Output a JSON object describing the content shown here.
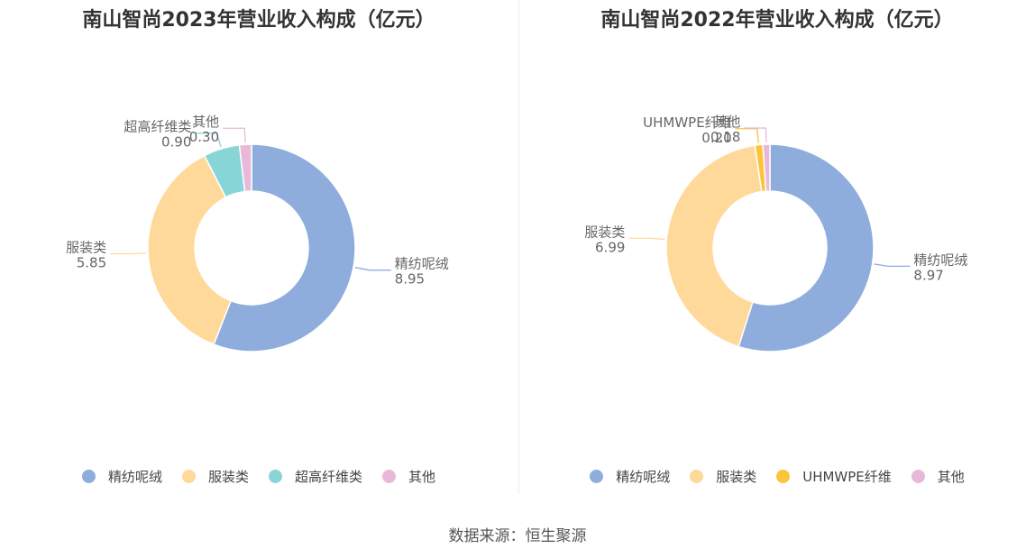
{
  "chart_data": [
    {
      "type": "pie",
      "title": "南山智尚2023年营业收入构成（亿元）",
      "categories": [
        "精纺呢绒",
        "服装类",
        "超高纤维类",
        "其他"
      ],
      "values": [
        8.95,
        5.85,
        0.9,
        0.3
      ],
      "value_labels": [
        "8.95",
        "5.85",
        "0.90",
        "0.30"
      ],
      "colors": [
        "#8eaddc",
        "#ffd99a",
        "#88d5d8",
        "#e8b8d9"
      ],
      "legend_position": "bottom"
    },
    {
      "type": "pie",
      "title": "南山智尚2022年营业收入构成（亿元）",
      "categories": [
        "精纺呢绒",
        "服装类",
        "UHMWPE纤维",
        "其他"
      ],
      "values": [
        8.97,
        6.99,
        0.2,
        0.18
      ],
      "value_labels": [
        "8.97",
        "6.99",
        "0.20",
        "0.18"
      ],
      "colors": [
        "#8eaddc",
        "#ffd99a",
        "#fbc43a",
        "#e8b8d9"
      ],
      "legend_position": "bottom"
    }
  ],
  "footer": {
    "source_label": "数据来源：",
    "source_value": "恒生聚源"
  }
}
